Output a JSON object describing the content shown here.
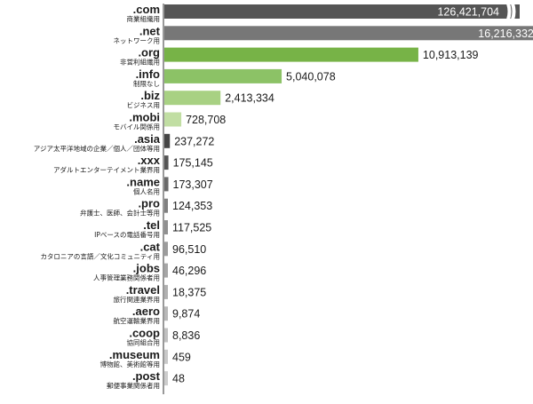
{
  "chart_data": {
    "type": "bar",
    "orientation": "horizontal",
    "title": "",
    "xlabel": "",
    "ylabel": "",
    "grid": false,
    "axis_break_on": ".com",
    "categories": [
      ".com",
      ".net",
      ".org",
      ".info",
      ".biz",
      ".mobi",
      ".asia",
      ".xxx",
      ".name",
      ".pro",
      ".tel",
      ".cat",
      ".jobs",
      ".travel",
      ".aero",
      ".coop",
      ".museum",
      ".post"
    ],
    "descriptions": [
      "商業組織用",
      "ネットワーク用",
      "非営利組織用",
      "制限なし",
      "ビジネス用",
      "モバイル関係用",
      "アジア太平洋地域の企業／個人／団体等用",
      "アダルトエンターテイメント業界用",
      "個人名用",
      "弁護士、医師、会計士等用",
      "IPベースの電話番号用",
      "カタロニアの言語／文化コミュニティ用",
      "人事管理業務関係者用",
      "旅行関連業界用",
      "航空運輸業界用",
      "協同組合用",
      "博物館、美術館等用",
      "郵便事業関係者用"
    ],
    "values": [
      126421704,
      16216332,
      10913139,
      5040078,
      2413334,
      728708,
      237272,
      175145,
      173307,
      124353,
      117525,
      96510,
      46296,
      18375,
      9874,
      8836,
      459,
      48
    ],
    "value_labels": [
      "126,421,704",
      "16,216,332",
      "10,913,139",
      "5,040,078",
      "2,413,334",
      "728,708",
      "237,272",
      "175,145",
      "173,307",
      "124,353",
      "117,525",
      "96,510",
      "46,296",
      "18,375",
      "9,874",
      "8,836",
      "459",
      "48"
    ],
    "colors": [
      "#555555",
      "#777777",
      "#77b347",
      "#8cc266",
      "#a8d183",
      "#c1dea3",
      "#444444",
      "#555555",
      "#6a6a6a",
      "#808080",
      "#909090",
      "#9c9c9c",
      "#a6a6a6",
      "#b0b0b0",
      "#b8b8b8",
      "#c0c0c0",
      "#c8c8c8",
      "#cccccc"
    ]
  }
}
